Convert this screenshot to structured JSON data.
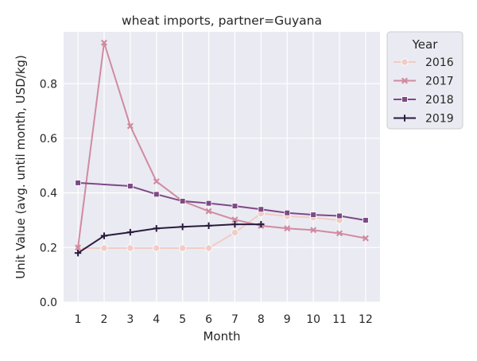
{
  "chart_data": {
    "type": "line",
    "title": "wheat imports, partner=Guyana",
    "xlabel": "Month",
    "ylabel": "Unit Value (avg. until month, USD/kg)",
    "x": [
      1,
      2,
      3,
      4,
      5,
      6,
      7,
      8,
      9,
      10,
      11,
      12
    ],
    "xlim": [
      0.45,
      12.55
    ],
    "ylim": [
      0.0,
      0.99
    ],
    "yticks": [
      0.0,
      0.2,
      0.4,
      0.6,
      0.8
    ],
    "ytick_labels": [
      "0.0",
      "0.2",
      "0.4",
      "0.6",
      "0.8"
    ],
    "xtick_labels": [
      "1",
      "2",
      "3",
      "4",
      "5",
      "6",
      "7",
      "8",
      "9",
      "10",
      "11",
      "12"
    ],
    "grid": true,
    "background": "#eaeaf2",
    "legend": {
      "title": "Year",
      "placement": "outside-top-right"
    },
    "series": [
      {
        "name": "2016",
        "color": "#f0cdc5",
        "marker": "circle",
        "values": [
          0.198,
          0.198,
          0.198,
          0.198,
          0.198,
          0.198,
          0.255,
          0.325,
          0.315,
          0.31,
          0.3,
          null
        ]
      },
      {
        "name": "2017",
        "color": "#d08ba0",
        "marker": "x",
        "values": [
          0.2,
          0.95,
          0.645,
          0.442,
          0.37,
          0.333,
          0.302,
          0.28,
          0.27,
          0.264,
          0.252,
          0.234
        ]
      },
      {
        "name": "2018",
        "color": "#7d4a85",
        "marker": "square",
        "values": [
          0.437,
          null,
          0.425,
          0.395,
          0.37,
          0.362,
          0.352,
          0.34,
          0.327,
          0.32,
          0.316,
          0.3
        ]
      },
      {
        "name": "2019",
        "color": "#2b1b3e",
        "marker": "plus",
        "values": [
          0.18,
          0.243,
          0.256,
          0.27,
          0.276,
          0.28,
          0.285,
          0.285,
          null,
          null,
          null,
          null
        ]
      }
    ]
  }
}
